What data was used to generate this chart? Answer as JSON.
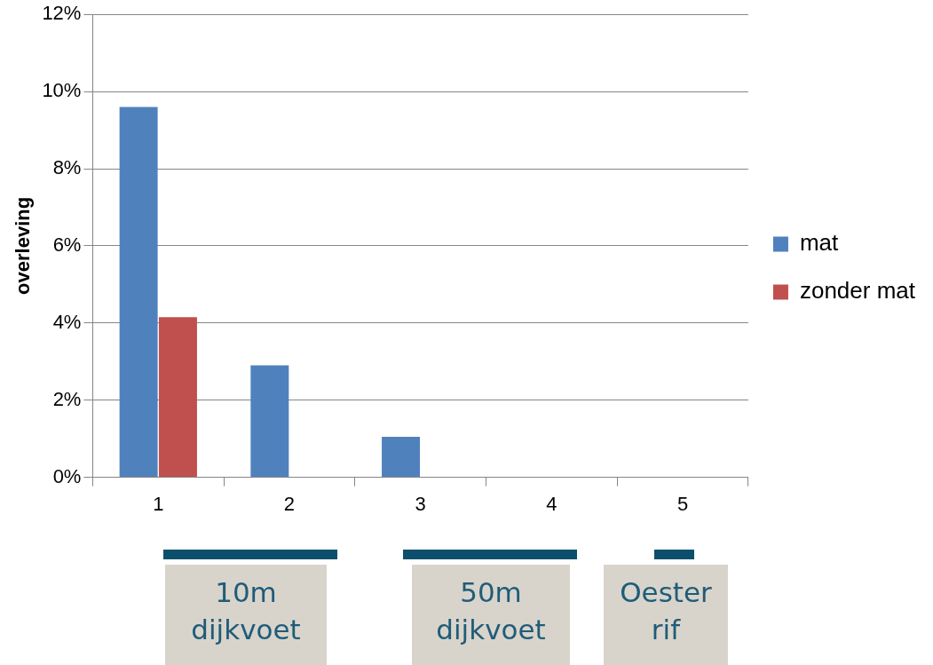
{
  "chart_data": {
    "type": "bar",
    "ylabel": "overleving",
    "categories": [
      "1",
      "2",
      "3",
      "4",
      "5"
    ],
    "series": [
      {
        "name": "mat",
        "color": "#4f81bd",
        "values": [
          9.6,
          2.9,
          1.05,
          0,
          0
        ]
      },
      {
        "name": "zonder mat",
        "color": "#c0504d",
        "values": [
          4.15,
          0,
          0,
          0,
          0
        ]
      }
    ],
    "ylim": [
      0,
      12
    ],
    "yticks": [
      {
        "value": 0,
        "label": "0%"
      },
      {
        "value": 2,
        "label": "2%"
      },
      {
        "value": 4,
        "label": "4%"
      },
      {
        "value": 6,
        "label": "6%"
      },
      {
        "value": 8,
        "label": "8%"
      },
      {
        "value": 10,
        "label": "10%"
      },
      {
        "value": 12,
        "label": "12%"
      }
    ],
    "grid": "y",
    "legend": "right",
    "annotations": [
      "10m dijkvoet",
      "50m dijkvoet",
      "Oester rif"
    ]
  }
}
